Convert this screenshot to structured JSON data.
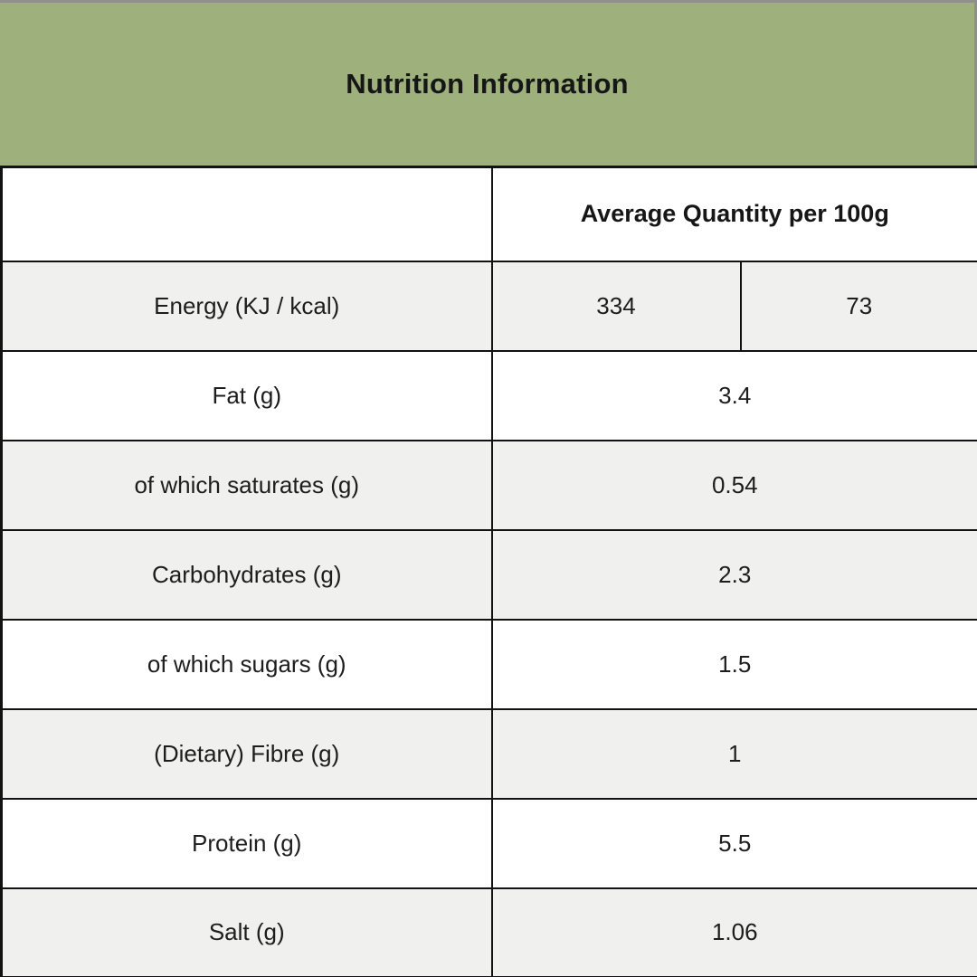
{
  "title": "Nutrition Information",
  "table": {
    "value_header": "Average Quantity per 100g",
    "rows": [
      {
        "label": "Energy (KJ / kcal)",
        "values": [
          "334",
          "73"
        ],
        "shaded": true
      },
      {
        "label": "Fat (g)",
        "values": [
          "3.4"
        ],
        "shaded": false
      },
      {
        "label": "of which saturates (g)",
        "values": [
          "0.54"
        ],
        "shaded": true
      },
      {
        "label": "Carbohydrates (g)",
        "values": [
          "2.3"
        ],
        "shaded": true
      },
      {
        "label": "of which sugars (g)",
        "values": [
          "1.5"
        ],
        "shaded": false
      },
      {
        "label": "(Dietary) Fibre (g)",
        "values": [
          "1"
        ],
        "shaded": true
      },
      {
        "label": "Protein (g)",
        "values": [
          "5.5"
        ],
        "shaded": false
      },
      {
        "label": "Salt (g)",
        "values": [
          "1.06"
        ],
        "shaded": true
      }
    ]
  },
  "colors": {
    "banner_green": "#9EB07C",
    "row_shade": "#F0F0EF",
    "border": "#121212",
    "text": "#1d1d1d",
    "outer_edge_gray": "#8d908c"
  }
}
